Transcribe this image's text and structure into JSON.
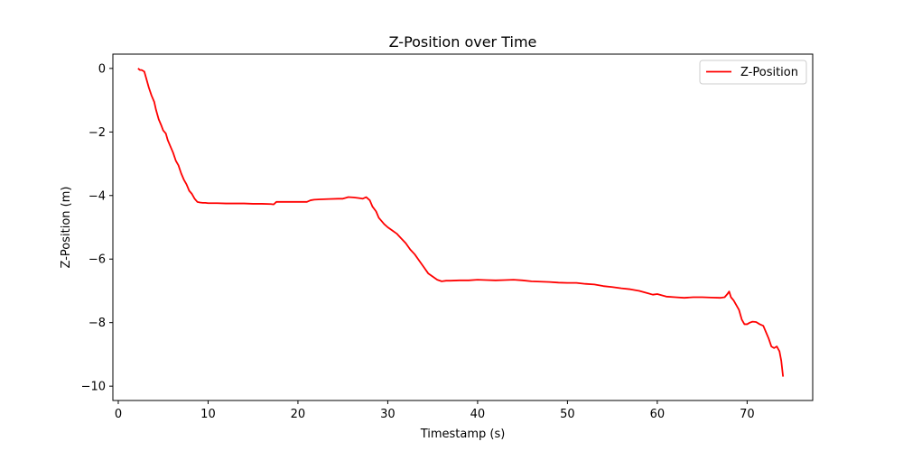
{
  "chart_data": {
    "type": "line",
    "title": "Z-Position over Time",
    "xlabel": "Timestamp (s)",
    "ylabel": "Z-Position (m)",
    "xlim": [
      -0.6,
      77.3
    ],
    "ylim": [
      -10.45,
      0.45
    ],
    "xticks": [
      0,
      10,
      20,
      30,
      40,
      50,
      60,
      70
    ],
    "yticks": [
      0,
      -2,
      -4,
      -6,
      -8,
      -10
    ],
    "xtick_labels": [
      "0",
      "10",
      "20",
      "30",
      "40",
      "50",
      "60",
      "70"
    ],
    "ytick_labels": [
      "0",
      "−2",
      "−4",
      "−6",
      "−8",
      "−10"
    ],
    "grid": false,
    "legend": {
      "position": "top-right",
      "entries": [
        "Z-Position"
      ]
    },
    "series": [
      {
        "name": "Z-Position",
        "color": "#ff0000",
        "x": [
          2.2,
          2.4,
          2.6,
          2.9,
          3.1,
          3.4,
          3.7,
          4.0,
          4.2,
          4.5,
          4.8,
          5.0,
          5.3,
          5.5,
          5.8,
          6.1,
          6.4,
          6.7,
          7.0,
          7.3,
          7.6,
          7.9,
          8.2,
          8.5,
          8.8,
          9.1,
          9.4,
          9.7,
          10.0,
          11.0,
          12.0,
          13.0,
          14.0,
          15.0,
          16.0,
          17.0,
          17.3,
          17.6,
          18.0,
          19.0,
          20.0,
          21.0,
          21.4,
          21.8,
          22.5,
          23.5,
          24.5,
          25.0,
          25.6,
          26.2,
          26.8,
          27.2,
          27.6,
          28.0,
          28.3,
          28.7,
          29.0,
          29.3,
          29.6,
          30.0,
          30.5,
          31.0,
          31.5,
          32.0,
          32.5,
          33.0,
          33.5,
          34.0,
          34.5,
          35.0,
          35.5,
          36.0,
          36.5,
          37.0,
          38.0,
          39.0,
          40.0,
          41.0,
          42.0,
          43.0,
          44.0,
          45.0,
          46.0,
          47.0,
          48.0,
          49.0,
          50.0,
          51.0,
          52.0,
          53.0,
          54.0,
          55.0,
          56.0,
          57.0,
          58.0,
          59.0,
          59.5,
          60.0,
          61.0,
          62.0,
          63.0,
          64.0,
          65.0,
          66.0,
          67.0,
          67.5,
          67.8,
          68.0,
          68.2,
          68.5,
          68.8,
          69.1,
          69.4,
          69.7,
          70.0,
          70.3,
          70.6,
          71.0,
          71.4,
          71.8,
          72.1,
          72.4,
          72.7,
          73.0,
          73.3,
          73.6,
          73.8,
          74.0
        ],
        "y": [
          0.0,
          -0.05,
          -0.05,
          -0.1,
          -0.3,
          -0.6,
          -0.85,
          -1.05,
          -1.3,
          -1.6,
          -1.8,
          -1.95,
          -2.05,
          -2.25,
          -2.45,
          -2.65,
          -2.9,
          -3.05,
          -3.3,
          -3.5,
          -3.65,
          -3.85,
          -3.95,
          -4.1,
          -4.2,
          -4.22,
          -4.23,
          -4.23,
          -4.24,
          -4.24,
          -4.25,
          -4.25,
          -4.25,
          -4.26,
          -4.26,
          -4.27,
          -4.28,
          -4.2,
          -4.2,
          -4.2,
          -4.2,
          -4.2,
          -4.15,
          -4.13,
          -4.12,
          -4.11,
          -4.1,
          -4.1,
          -4.05,
          -4.06,
          -4.08,
          -4.1,
          -4.05,
          -4.15,
          -4.35,
          -4.5,
          -4.7,
          -4.8,
          -4.9,
          -5.0,
          -5.1,
          -5.2,
          -5.35,
          -5.5,
          -5.7,
          -5.85,
          -6.05,
          -6.25,
          -6.45,
          -6.55,
          -6.65,
          -6.7,
          -6.68,
          -6.68,
          -6.67,
          -6.67,
          -6.65,
          -6.66,
          -6.67,
          -6.66,
          -6.65,
          -6.67,
          -6.7,
          -6.71,
          -6.72,
          -6.74,
          -6.75,
          -6.75,
          -6.78,
          -6.8,
          -6.85,
          -6.88,
          -6.92,
          -6.95,
          -7.0,
          -7.08,
          -7.12,
          -7.1,
          -7.18,
          -7.2,
          -7.22,
          -7.2,
          -7.2,
          -7.21,
          -7.22,
          -7.2,
          -7.1,
          -7.02,
          -7.2,
          -7.3,
          -7.45,
          -7.6,
          -7.9,
          -8.05,
          -8.05,
          -8.0,
          -7.97,
          -7.98,
          -8.05,
          -8.1,
          -8.3,
          -8.5,
          -8.75,
          -8.8,
          -8.75,
          -8.9,
          -9.2,
          -9.7
        ]
      }
    ]
  }
}
